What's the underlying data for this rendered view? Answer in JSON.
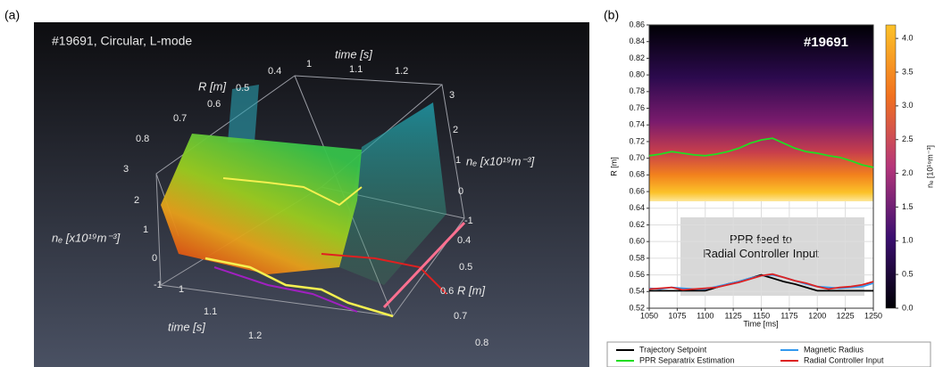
{
  "chart_data": [
    {
      "type": "surface3d",
      "panel_label": "(a)",
      "title": "#19691, Circular, L-mode",
      "time_label": "time [s]",
      "r_label": "R [m]",
      "ne_label": "nₑ [x10¹⁹m⁻³]",
      "time_ticks": [
        1,
        1.1,
        1.2
      ],
      "r_ticks": [
        0.4,
        0.5,
        0.6,
        0.7,
        0.8
      ],
      "ne_ticks": [
        -1,
        0,
        1,
        2,
        3
      ]
    },
    {
      "type": "line",
      "panel_label": "(b)",
      "shot_label": "#19691",
      "annotation": "PPR feed to Radial Controller Input",
      "xlabel": "Time [ms]",
      "ylabel": "R [m]",
      "x": [
        1050,
        1060,
        1070,
        1080,
        1090,
        1100,
        1110,
        1120,
        1130,
        1140,
        1150,
        1160,
        1170,
        1180,
        1190,
        1200,
        1210,
        1220,
        1230,
        1240,
        1250
      ],
      "series": [
        {
          "name": "Trajectory Setpoint",
          "color": "#000000",
          "values": [
            0.541,
            0.541,
            0.541,
            0.541,
            0.541,
            0.541,
            0.545,
            0.549,
            0.552,
            0.556,
            0.56,
            0.556,
            0.552,
            0.549,
            0.545,
            0.541,
            0.541,
            0.541,
            0.541,
            0.541,
            0.541
          ]
        },
        {
          "name": "PPR Separatrix Estimation",
          "color": "#22dd22",
          "values": [
            0.703,
            0.705,
            0.708,
            0.706,
            0.704,
            0.703,
            0.705,
            0.708,
            0.712,
            0.718,
            0.722,
            0.724,
            0.718,
            0.712,
            0.708,
            0.706,
            0.703,
            0.701,
            0.697,
            0.692,
            0.689
          ]
        },
        {
          "name": "Magnetic Radius",
          "color": "#3399ee",
          "values": [
            0.544,
            0.543,
            0.545,
            0.544,
            0.543,
            0.543,
            0.546,
            0.549,
            0.552,
            0.556,
            0.559,
            0.56,
            0.557,
            0.553,
            0.549,
            0.546,
            0.545,
            0.544,
            0.545,
            0.546,
            0.55
          ]
        },
        {
          "name": "Radial Controller Input",
          "color": "#dd2222",
          "values": [
            0.543,
            0.544,
            0.545,
            0.542,
            0.543,
            0.544,
            0.545,
            0.548,
            0.551,
            0.555,
            0.559,
            0.561,
            0.557,
            0.553,
            0.55,
            0.546,
            0.543,
            0.545,
            0.546,
            0.548,
            0.552
          ]
        }
      ],
      "xlim": [
        1050,
        1250
      ],
      "xticks": [
        1050,
        1075,
        1100,
        1125,
        1150,
        1175,
        1200,
        1225,
        1250
      ],
      "ylim": [
        0.52,
        0.86
      ],
      "yticks": [
        0.52,
        0.54,
        0.56,
        0.58,
        {
          "value": 0.6,
          "label": "0.60"
        },
        0.62,
        0.64,
        0.66,
        0.68,
        {
          "value": 0.7,
          "label": "0.70"
        },
        0.72,
        0.74,
        0.76,
        0.78,
        {
          "value": 0.8,
          "label": "0.80"
        },
        0.82,
        0.84,
        0.86
      ],
      "grid": true,
      "colorbar": {
        "label": "nₑ [10¹⁹m⁻³]",
        "lim": [
          0,
          4.2
        ],
        "ticks": [
          {
            "value": 0,
            "label": "0.0"
          },
          0.5,
          {
            "value": 1,
            "label": "1.0"
          },
          1.5,
          {
            "value": 2,
            "label": "2.0"
          },
          2.5,
          {
            "value": 3,
            "label": "3.0"
          },
          3.5,
          {
            "value": 4,
            "label": "4.0"
          }
        ]
      }
    }
  ]
}
